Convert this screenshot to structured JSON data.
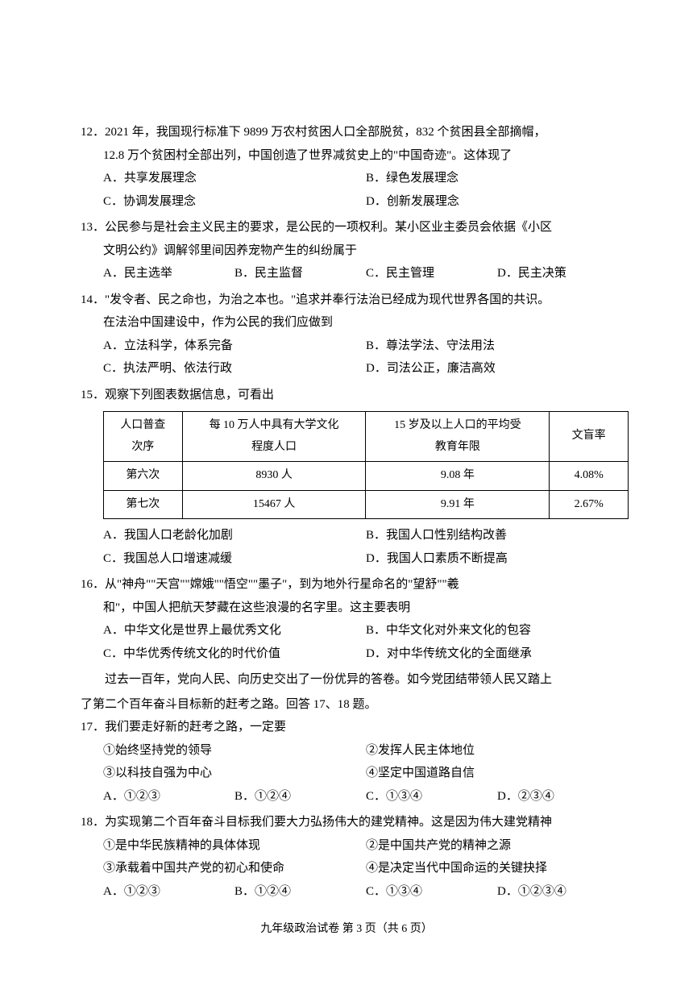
{
  "q12": {
    "num": "12．",
    "line1": "2021 年，我国现行标准下 9899 万农村贫困人口全部脱贫，832 个贫困县全部摘帽，",
    "line2": "12.8 万个贫困村全部出列，中国创造了世界减贫史上的\"中国奇迹\"。这体现了",
    "a": "A．共享发展理念",
    "b": "B．绿色发展理念",
    "c": "C．协调发展理念",
    "d": "D．创新发展理念"
  },
  "q13": {
    "num": "13．",
    "line1": "公民参与是社会主义民主的要求，是公民的一项权利。某小区业主委员会依据《小区",
    "line2": "文明公约》调解邻里间因养宠物产生的纠纷属于",
    "a": "A．民主选举",
    "b": "B．民主监督",
    "c": "C．民主管理",
    "d": "D．民主决策"
  },
  "q14": {
    "num": "14．",
    "line1": "\"发令者、民之命也，为治之本也。\"追求并奉行法治已经成为现代世界各国的共识。",
    "line2": "在法治中国建设中，作为公民的我们应做到",
    "a": "A．立法科学，体系完备",
    "b": "B．尊法学法、守法用法",
    "c": "C．执法严明、依法行政",
    "d": "D．司法公正，廉洁高效"
  },
  "q15": {
    "num": "15．",
    "line1": "观察下列图表数据信息，可看出",
    "table": {
      "headers": [
        "人口普查\n次序",
        "每 10 万人中具有大学文化\n程度人口",
        "15 岁及以上人口的平均受\n教育年限",
        "文盲率"
      ],
      "rows": [
        [
          "第六次",
          "8930 人",
          "9.08 年",
          "4.08%"
        ],
        [
          "第七次",
          "15467 人",
          "9.91 年",
          "2.67%"
        ]
      ],
      "col_widths": [
        "15%",
        "35%",
        "35%",
        "15%"
      ]
    },
    "a": "A．我国人口老龄化加剧",
    "b": "B．我国人口性别结构改善",
    "c": "C．我国总人口增速减缓",
    "d": "D．我国人口素质不断提高"
  },
  "q16": {
    "num": "16．",
    "line1": "从\"神舟\"\"天宫\"\"嫦娥\"\"悟空\"\"墨子\"，到为地外行星命名的\"望舒\"\"羲",
    "line2": "和\"，中国人把航天梦藏在这些浪漫的名字里。这主要表明",
    "a": "A．中华文化是世界上最优秀文化",
    "b": "B．中华文化对外来文化的包容",
    "c": "C．中华优秀传统文化的时代价值",
    "d": "D．对中华传统文化的全面继承"
  },
  "intro": {
    "line1": "过去一百年，党向人民、向历史交出了一份优异的答卷。如今党团结带领人民又踏上",
    "line2": "了第二个百年奋斗目标新的赶考之路。回答 17、18 题。"
  },
  "q17": {
    "num": "17．",
    "line1": "我们要走好新的赶考之路，一定要",
    "s1": "①始终坚持党的领导",
    "s2": "②发挥人民主体地位",
    "s3": "③以科技自强为中心",
    "s4": "④坚定中国道路自信",
    "a": "A．①②③",
    "b": "B．①②④",
    "c": "C．①③④",
    "d": "D．②③④"
  },
  "q18": {
    "num": "18．",
    "line1": "为实现第二个百年奋斗目标我们要大力弘扬伟大的建党精神。这是因为伟大建党精神",
    "s1": "①是中华民族精神的具体体现",
    "s2": "②是中国共产党的精神之源",
    "s3": "③承载着中国共产党的初心和使命",
    "s4": "④是决定当代中国命运的关键抉择",
    "a": "A．①②③",
    "b": "B．①②④",
    "c": "C．①③④",
    "d": "D．①②③④"
  },
  "footer": "九年级政治试卷  第 3 页（共 6 页）"
}
